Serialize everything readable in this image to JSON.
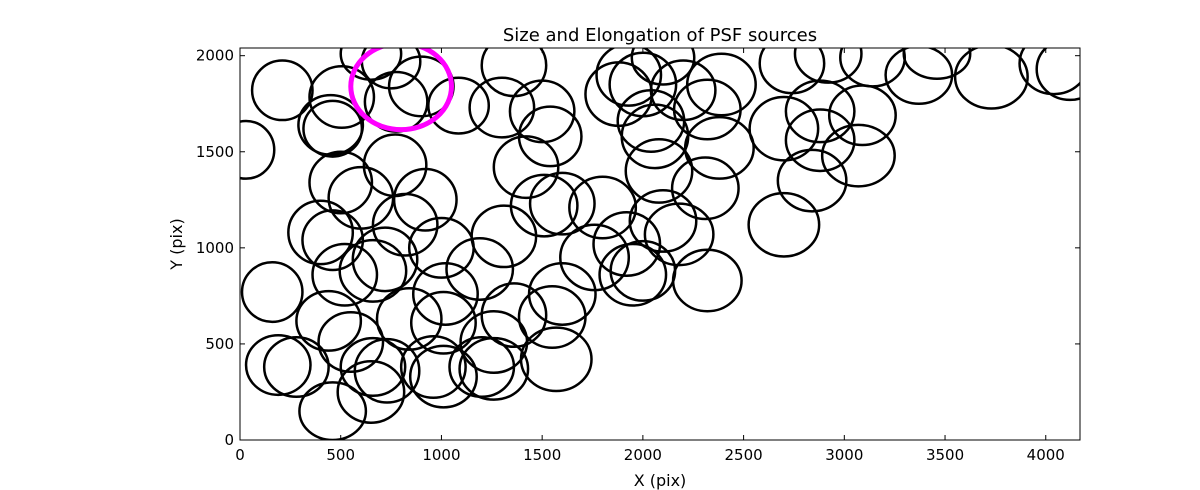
{
  "chart_data": {
    "type": "scatter",
    "marker": "ellipse",
    "title": "Size and Elongation of PSF sources",
    "xlabel": "X (pix)",
    "ylabel": "Y (pix)",
    "xlim": [
      0,
      4170
    ],
    "ylim": [
      0,
      2040
    ],
    "xticks": [
      0,
      500,
      1000,
      1500,
      2000,
      2500,
      3000,
      3500,
      4000
    ],
    "yticks": [
      0,
      500,
      1000,
      1500,
      2000
    ],
    "grid": false,
    "style": {
      "ellipse_color": "#000000",
      "highlight_color": "#ff00ff"
    },
    "ellipse_size_note": "Full ellipse width and height in pixel units of the data axes",
    "sources": [
      {
        "x": 30,
        "y": 1510,
        "w": 280,
        "h": 300
      },
      {
        "x": 210,
        "y": 1820,
        "w": 300,
        "h": 310
      },
      {
        "x": 505,
        "y": 1785,
        "w": 320,
        "h": 320
      },
      {
        "x": 450,
        "y": 1640,
        "w": 320,
        "h": 310
      },
      {
        "x": 460,
        "y": 1620,
        "w": 290,
        "h": 290
      },
      {
        "x": 650,
        "y": 2010,
        "w": 300,
        "h": 270
      },
      {
        "x": 750,
        "y": 1970,
        "w": 290,
        "h": 280
      },
      {
        "x": 775,
        "y": 1760,
        "w": 310,
        "h": 310
      },
      {
        "x": 900,
        "y": 1840,
        "w": 320,
        "h": 310
      },
      {
        "x": 1085,
        "y": 1740,
        "w": 300,
        "h": 290
      },
      {
        "x": 1360,
        "y": 1950,
        "w": 320,
        "h": 320
      },
      {
        "x": 1300,
        "y": 1730,
        "w": 320,
        "h": 310
      },
      {
        "x": 1500,
        "y": 1710,
        "w": 320,
        "h": 320
      },
      {
        "x": 1540,
        "y": 1580,
        "w": 310,
        "h": 310
      },
      {
        "x": 1420,
        "y": 1420,
        "w": 320,
        "h": 320
      },
      {
        "x": 770,
        "y": 1430,
        "w": 310,
        "h": 320
      },
      {
        "x": 500,
        "y": 1340,
        "w": 310,
        "h": 320
      },
      {
        "x": 600,
        "y": 1260,
        "w": 320,
        "h": 320
      },
      {
        "x": 920,
        "y": 1250,
        "w": 310,
        "h": 320
      },
      {
        "x": 820,
        "y": 1120,
        "w": 320,
        "h": 320
      },
      {
        "x": 400,
        "y": 1080,
        "w": 320,
        "h": 330
      },
      {
        "x": 460,
        "y": 1040,
        "w": 300,
        "h": 310
      },
      {
        "x": 720,
        "y": 940,
        "w": 320,
        "h": 330
      },
      {
        "x": 660,
        "y": 880,
        "w": 330,
        "h": 320
      },
      {
        "x": 520,
        "y": 860,
        "w": 320,
        "h": 320
      },
      {
        "x": 1000,
        "y": 1000,
        "w": 320,
        "h": 310
      },
      {
        "x": 1310,
        "y": 1060,
        "w": 320,
        "h": 320
      },
      {
        "x": 1510,
        "y": 1220,
        "w": 330,
        "h": 320
      },
      {
        "x": 1600,
        "y": 1230,
        "w": 320,
        "h": 320
      },
      {
        "x": 1800,
        "y": 1210,
        "w": 330,
        "h": 320
      },
      {
        "x": 1760,
        "y": 950,
        "w": 340,
        "h": 340
      },
      {
        "x": 1920,
        "y": 1020,
        "w": 330,
        "h": 330
      },
      {
        "x": 2000,
        "y": 880,
        "w": 320,
        "h": 310
      },
      {
        "x": 1950,
        "y": 860,
        "w": 330,
        "h": 320
      },
      {
        "x": 2100,
        "y": 1140,
        "w": 330,
        "h": 320
      },
      {
        "x": 2180,
        "y": 1070,
        "w": 340,
        "h": 320
      },
      {
        "x": 2320,
        "y": 830,
        "w": 340,
        "h": 320
      },
      {
        "x": 2310,
        "y": 1310,
        "w": 330,
        "h": 320
      },
      {
        "x": 2080,
        "y": 1400,
        "w": 330,
        "h": 330
      },
      {
        "x": 2060,
        "y": 1580,
        "w": 330,
        "h": 330
      },
      {
        "x": 2040,
        "y": 1660,
        "w": 330,
        "h": 320
      },
      {
        "x": 2380,
        "y": 1520,
        "w": 340,
        "h": 320
      },
      {
        "x": 2320,
        "y": 1720,
        "w": 330,
        "h": 310
      },
      {
        "x": 2390,
        "y": 1850,
        "w": 340,
        "h": 320
      },
      {
        "x": 2200,
        "y": 1820,
        "w": 320,
        "h": 310
      },
      {
        "x": 2000,
        "y": 1850,
        "w": 330,
        "h": 330
      },
      {
        "x": 1880,
        "y": 1800,
        "w": 330,
        "h": 330
      },
      {
        "x": 1930,
        "y": 1900,
        "w": 320,
        "h": 320
      },
      {
        "x": 2100,
        "y": 1990,
        "w": 310,
        "h": 280
      },
      {
        "x": 2700,
        "y": 1620,
        "w": 340,
        "h": 330
      },
      {
        "x": 2880,
        "y": 1710,
        "w": 340,
        "h": 320
      },
      {
        "x": 2880,
        "y": 1560,
        "w": 340,
        "h": 320
      },
      {
        "x": 3070,
        "y": 1480,
        "w": 360,
        "h": 320
      },
      {
        "x": 3090,
        "y": 1690,
        "w": 330,
        "h": 310
      },
      {
        "x": 2840,
        "y": 1350,
        "w": 340,
        "h": 320
      },
      {
        "x": 2700,
        "y": 1120,
        "w": 350,
        "h": 330
      },
      {
        "x": 2740,
        "y": 1960,
        "w": 320,
        "h": 310
      },
      {
        "x": 2920,
        "y": 2010,
        "w": 330,
        "h": 300
      },
      {
        "x": 3140,
        "y": 1990,
        "w": 320,
        "h": 300
      },
      {
        "x": 3370,
        "y": 1900,
        "w": 330,
        "h": 300
      },
      {
        "x": 3460,
        "y": 2010,
        "w": 330,
        "h": 260
      },
      {
        "x": 3730,
        "y": 1890,
        "w": 360,
        "h": 330
      },
      {
        "x": 4040,
        "y": 1960,
        "w": 340,
        "h": 320
      },
      {
        "x": 4120,
        "y": 1930,
        "w": 330,
        "h": 320
      },
      {
        "x": 160,
        "y": 770,
        "w": 300,
        "h": 310
      },
      {
        "x": 440,
        "y": 620,
        "w": 320,
        "h": 310
      },
      {
        "x": 550,
        "y": 510,
        "w": 320,
        "h": 310
      },
      {
        "x": 660,
        "y": 380,
        "w": 320,
        "h": 300
      },
      {
        "x": 730,
        "y": 360,
        "w": 320,
        "h": 330
      },
      {
        "x": 280,
        "y": 380,
        "w": 320,
        "h": 310
      },
      {
        "x": 190,
        "y": 390,
        "w": 320,
        "h": 310
      },
      {
        "x": 460,
        "y": 150,
        "w": 330,
        "h": 300
      },
      {
        "x": 650,
        "y": 250,
        "w": 330,
        "h": 320
      },
      {
        "x": 840,
        "y": 630,
        "w": 320,
        "h": 320
      },
      {
        "x": 1020,
        "y": 760,
        "w": 320,
        "h": 320
      },
      {
        "x": 1010,
        "y": 610,
        "w": 320,
        "h": 320
      },
      {
        "x": 1190,
        "y": 890,
        "w": 330,
        "h": 320
      },
      {
        "x": 1360,
        "y": 650,
        "w": 320,
        "h": 330
      },
      {
        "x": 1260,
        "y": 510,
        "w": 330,
        "h": 320
      },
      {
        "x": 1550,
        "y": 640,
        "w": 330,
        "h": 320
      },
      {
        "x": 1600,
        "y": 760,
        "w": 330,
        "h": 320
      },
      {
        "x": 1570,
        "y": 420,
        "w": 350,
        "h": 330
      },
      {
        "x": 1260,
        "y": 370,
        "w": 340,
        "h": 320
      },
      {
        "x": 1200,
        "y": 380,
        "w": 320,
        "h": 310
      },
      {
        "x": 1010,
        "y": 330,
        "w": 330,
        "h": 320
      },
      {
        "x": 960,
        "y": 380,
        "w": 320,
        "h": 320
      }
    ],
    "highlight": {
      "x": 800,
      "y": 1840,
      "w": 500,
      "h": 450
    }
  }
}
